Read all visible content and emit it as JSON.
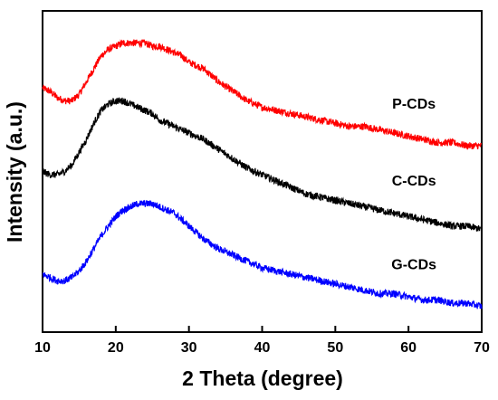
{
  "chart_data": {
    "type": "line",
    "title": "",
    "xlabel": "2 Theta (degree)",
    "ylabel": "Intensity (a.u.)",
    "xlim": [
      10,
      70
    ],
    "x_ticks": [
      10,
      20,
      30,
      40,
      50,
      60,
      70
    ],
    "y_ticks_shown": false,
    "grid": false,
    "legend": "inline labels at right",
    "x": [
      10,
      11,
      12,
      13,
      14,
      15,
      16,
      17,
      18,
      19,
      20,
      21,
      22,
      23,
      24,
      25,
      26,
      27,
      28,
      29,
      30,
      32,
      34,
      36,
      38,
      40,
      42,
      44,
      46,
      48,
      50,
      52,
      54,
      56,
      58,
      60,
      62,
      64,
      66,
      68,
      70
    ],
    "series": [
      {
        "name": "P-CDs",
        "color": "#ff0000",
        "values": [
          0.76,
          0.75,
          0.73,
          0.72,
          0.72,
          0.74,
          0.78,
          0.82,
          0.86,
          0.88,
          0.89,
          0.9,
          0.9,
          0.9,
          0.9,
          0.89,
          0.89,
          0.88,
          0.87,
          0.86,
          0.84,
          0.82,
          0.78,
          0.75,
          0.72,
          0.7,
          0.69,
          0.68,
          0.67,
          0.66,
          0.65,
          0.64,
          0.64,
          0.63,
          0.62,
          0.61,
          0.6,
          0.59,
          0.59,
          0.58,
          0.58
        ]
      },
      {
        "name": "C-CDs",
        "color": "#000000",
        "values": [
          0.5,
          0.49,
          0.49,
          0.5,
          0.52,
          0.56,
          0.6,
          0.65,
          0.69,
          0.71,
          0.72,
          0.72,
          0.71,
          0.7,
          0.69,
          0.68,
          0.66,
          0.65,
          0.64,
          0.63,
          0.62,
          0.6,
          0.57,
          0.54,
          0.51,
          0.49,
          0.47,
          0.45,
          0.43,
          0.42,
          0.41,
          0.4,
          0.39,
          0.38,
          0.37,
          0.36,
          0.35,
          0.34,
          0.33,
          0.33,
          0.32
        ]
      },
      {
        "name": "G-CDs",
        "color": "#0000ff",
        "values": [
          0.18,
          0.17,
          0.16,
          0.16,
          0.17,
          0.19,
          0.22,
          0.26,
          0.3,
          0.33,
          0.36,
          0.38,
          0.39,
          0.4,
          0.4,
          0.4,
          0.39,
          0.38,
          0.37,
          0.35,
          0.33,
          0.29,
          0.26,
          0.24,
          0.22,
          0.2,
          0.19,
          0.18,
          0.17,
          0.16,
          0.15,
          0.14,
          0.13,
          0.12,
          0.12,
          0.11,
          0.1,
          0.1,
          0.09,
          0.09,
          0.08
        ]
      }
    ]
  }
}
